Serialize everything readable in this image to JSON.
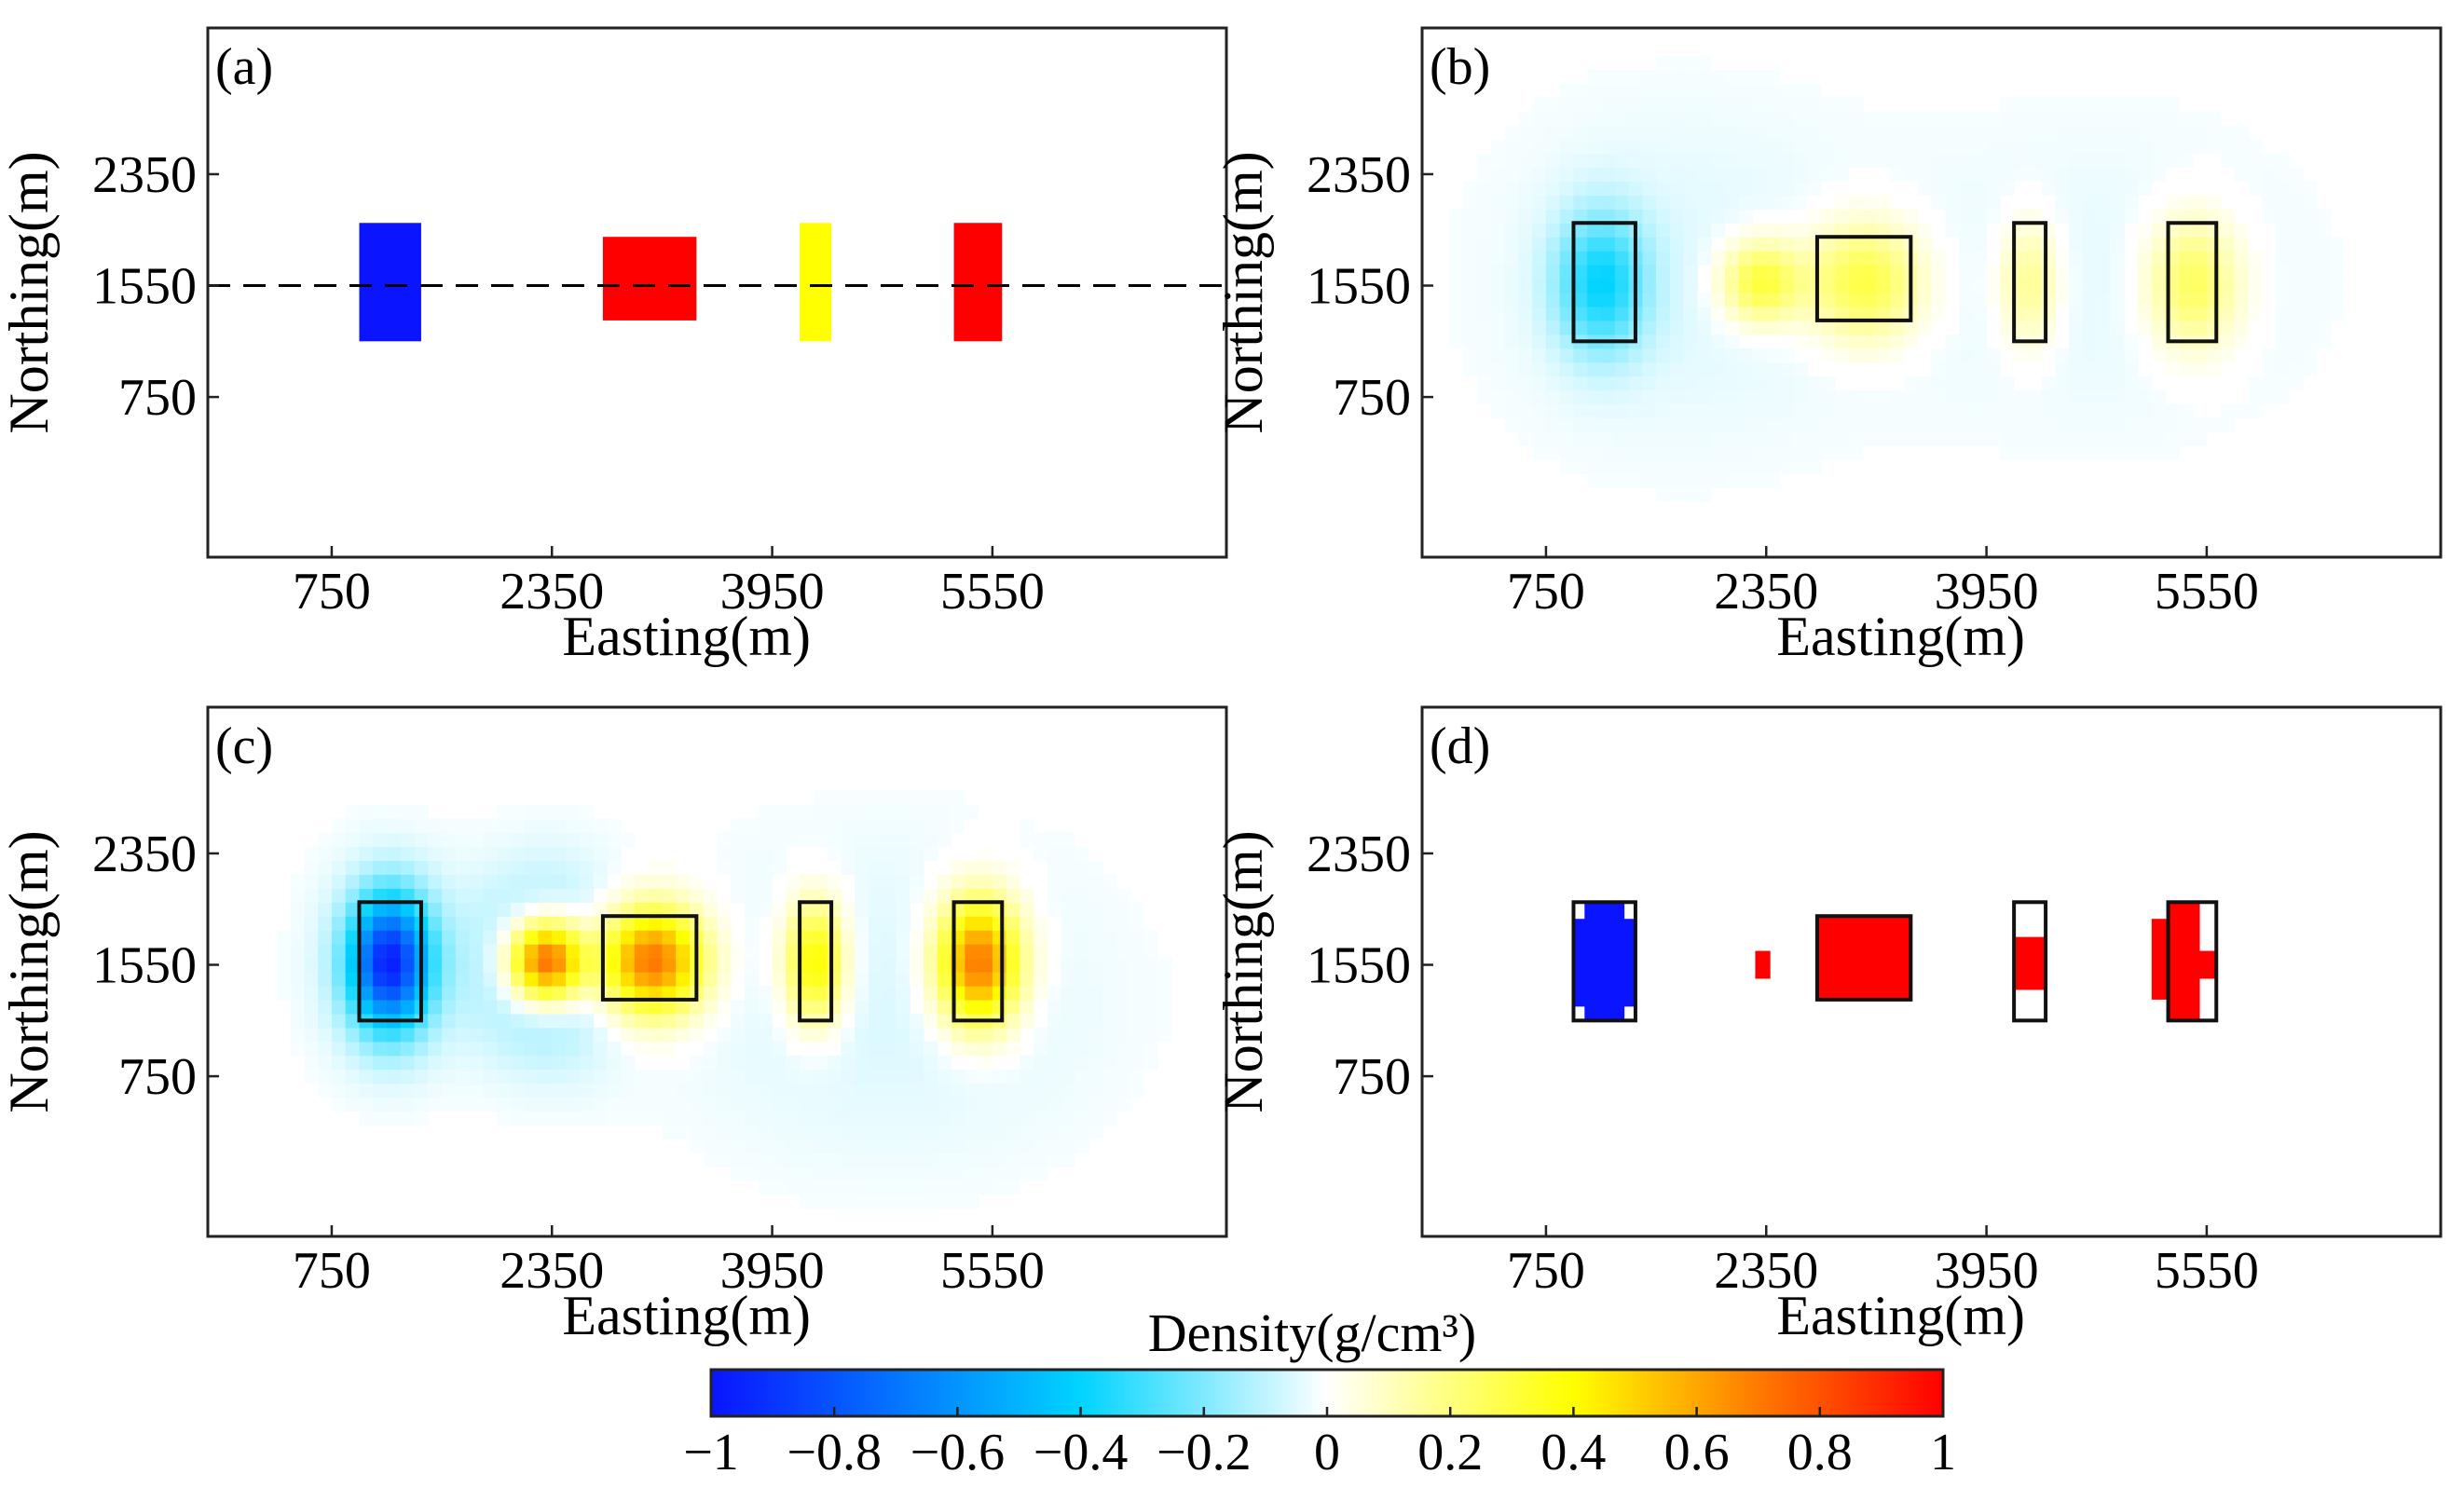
{
  "chart_data": [
    {
      "panel": "(a)",
      "type": "heatmap",
      "title": "",
      "xlabel": "Easting(m)",
      "ylabel": "Northing(m)",
      "xlim": [
        -150,
        7250
      ],
      "ylim": [
        -400,
        3400
      ],
      "xticks": [
        "750",
        "2350",
        "3950",
        "5550"
      ],
      "yticks": [
        "750",
        "1550",
        "2350"
      ],
      "profile_line": {
        "northing": 1550,
        "style": "dashed"
      },
      "blocks": [
        {
          "x0": 950,
          "x1": 1400,
          "y0": 1150,
          "y1": 2000,
          "density": -1
        },
        {
          "x0": 2720,
          "x1": 3400,
          "y0": 1300,
          "y1": 1900,
          "density": 1
        },
        {
          "x0": 4150,
          "x1": 4380,
          "y0": 1150,
          "y1": 2000,
          "density": 0.4
        },
        {
          "x0": 5270,
          "x1": 5620,
          "y0": 1150,
          "y1": 2000,
          "density": 1
        }
      ]
    },
    {
      "panel": "(b)",
      "type": "heatmap",
      "title": "",
      "xlabel": "Easting(m)",
      "ylabel": "Northing(m)",
      "xlim": [
        -150,
        7250
      ],
      "ylim": [
        -400,
        3400
      ],
      "xticks": [
        "750",
        "2350",
        "3950",
        "5550"
      ],
      "yticks": [
        "750",
        "1550",
        "2350"
      ],
      "anomalies": [
        {
          "cx": 1150,
          "cy": 1570,
          "amp": -0.36,
          "sx": 330,
          "sy": 500
        },
        {
          "cx": 2310,
          "cy": 1580,
          "amp": 0.34,
          "sx": 290,
          "sy": 300
        },
        {
          "cx": 3060,
          "cy": 1580,
          "amp": 0.32,
          "sx": 420,
          "sy": 420
        },
        {
          "cx": 4260,
          "cy": 1570,
          "amp": 0.2,
          "sx": 220,
          "sy": 450
        },
        {
          "cx": 5450,
          "cy": 1570,
          "amp": 0.28,
          "sx": 340,
          "sy": 470
        },
        {
          "cx": 1700,
          "cy": 1600,
          "amp": -0.05,
          "sx": 1400,
          "sy": 1300
        },
        {
          "cx": 4800,
          "cy": 1600,
          "amp": -0.04,
          "sx": 1600,
          "sy": 1200
        }
      ],
      "outlines": [
        {
          "x0": 950,
          "x1": 1400,
          "y0": 1150,
          "y1": 2000
        },
        {
          "x0": 2720,
          "x1": 3400,
          "y0": 1300,
          "y1": 1900
        },
        {
          "x0": 4150,
          "x1": 4380,
          "y0": 1150,
          "y1": 2000
        },
        {
          "x0": 5270,
          "x1": 5620,
          "y0": 1150,
          "y1": 2000
        }
      ]
    },
    {
      "panel": "(c)",
      "type": "heatmap",
      "title": "",
      "xlabel": "Easting(m)",
      "ylabel": "Northing(m)",
      "xlim": [
        -150,
        7250
      ],
      "ylim": [
        -400,
        3400
      ],
      "xticks": [
        "750",
        "2350",
        "3950",
        "5550"
      ],
      "yticks": [
        "750",
        "1550",
        "2350"
      ],
      "anomalies": [
        {
          "cx": 1170,
          "cy": 1570,
          "amp": -0.85,
          "sx": 280,
          "sy": 460
        },
        {
          "cx": 2310,
          "cy": 1580,
          "amp": 0.95,
          "sx": 280,
          "sy": 300
        },
        {
          "cx": 3070,
          "cy": 1580,
          "amp": 0.75,
          "sx": 380,
          "sy": 380
        },
        {
          "cx": 4260,
          "cy": 1570,
          "amp": 0.45,
          "sx": 220,
          "sy": 440
        },
        {
          "cx": 5450,
          "cy": 1570,
          "amp": 0.75,
          "sx": 300,
          "sy": 450
        },
        {
          "cx": 2300,
          "cy": 1550,
          "amp": -0.25,
          "sx": 520,
          "sy": 650
        },
        {
          "cx": 1170,
          "cy": 1550,
          "amp": -0.12,
          "sx": 520,
          "sy": 750
        },
        {
          "cx": 4800,
          "cy": 1300,
          "amp": -0.06,
          "sx": 1600,
          "sy": 1200
        }
      ],
      "outlines": [
        {
          "x0": 950,
          "x1": 1400,
          "y0": 1150,
          "y1": 2000
        },
        {
          "x0": 2720,
          "x1": 3400,
          "y0": 1300,
          "y1": 1900
        },
        {
          "x0": 4150,
          "x1": 4380,
          "y0": 1150,
          "y1": 2000
        },
        {
          "x0": 5270,
          "x1": 5620,
          "y0": 1150,
          "y1": 2000
        }
      ]
    },
    {
      "panel": "(d)",
      "type": "heatmap",
      "title": "",
      "xlabel": "Easting(m)",
      "ylabel": "Northing(m)",
      "xlim": [
        -150,
        7250
      ],
      "ylim": [
        -400,
        3400
      ],
      "xticks": [
        "750",
        "2350",
        "3950",
        "5550"
      ],
      "yticks": [
        "750",
        "1550",
        "2350"
      ],
      "blocks": [
        {
          "x0": 950,
          "x1": 1400,
          "y0": 1250,
          "y1": 1880,
          "density": -1
        },
        {
          "x0": 1030,
          "x1": 1320,
          "y0": 1150,
          "y1": 2000,
          "density": -1
        },
        {
          "x0": 2270,
          "x1": 2380,
          "y0": 1450,
          "y1": 1650,
          "density": 1
        },
        {
          "x0": 2720,
          "x1": 3400,
          "y0": 1300,
          "y1": 1900,
          "density": 1
        },
        {
          "x0": 4150,
          "x1": 4380,
          "y0": 1370,
          "y1": 1750,
          "density": 1
        },
        {
          "x0": 5150,
          "x1": 5380,
          "y0": 1300,
          "y1": 1880,
          "density": 1
        },
        {
          "x0": 5270,
          "x1": 5500,
          "y0": 1150,
          "y1": 2000,
          "density": 1
        },
        {
          "x0": 5380,
          "x1": 5620,
          "y0": 1450,
          "y1": 1650,
          "density": 1
        }
      ],
      "outlines": [
        {
          "x0": 950,
          "x1": 1400,
          "y0": 1150,
          "y1": 2000
        },
        {
          "x0": 2720,
          "x1": 3400,
          "y0": 1300,
          "y1": 1900
        },
        {
          "x0": 4150,
          "x1": 4380,
          "y0": 1150,
          "y1": 2000
        },
        {
          "x0": 5270,
          "x1": 5620,
          "y0": 1150,
          "y1": 2000
        }
      ]
    }
  ],
  "colorbar": {
    "label": "Density(g/cm³)",
    "range": [
      -1,
      1
    ],
    "tick_values": [
      -1,
      -0.8,
      -0.6,
      -0.4,
      -0.2,
      0,
      0.2,
      0.4,
      0.6,
      0.8,
      1
    ],
    "tick_labels": [
      "−1",
      "−0.8",
      "−0.6",
      "−0.4",
      "−0.2",
      "0",
      "0.2",
      "0.4",
      "0.6",
      "0.8",
      "1"
    ],
    "colors": [
      "#0a14ff",
      "#00d4ff",
      "#ffffff",
      "#ffff00",
      "#ff7a00",
      "#ff0000"
    ]
  }
}
